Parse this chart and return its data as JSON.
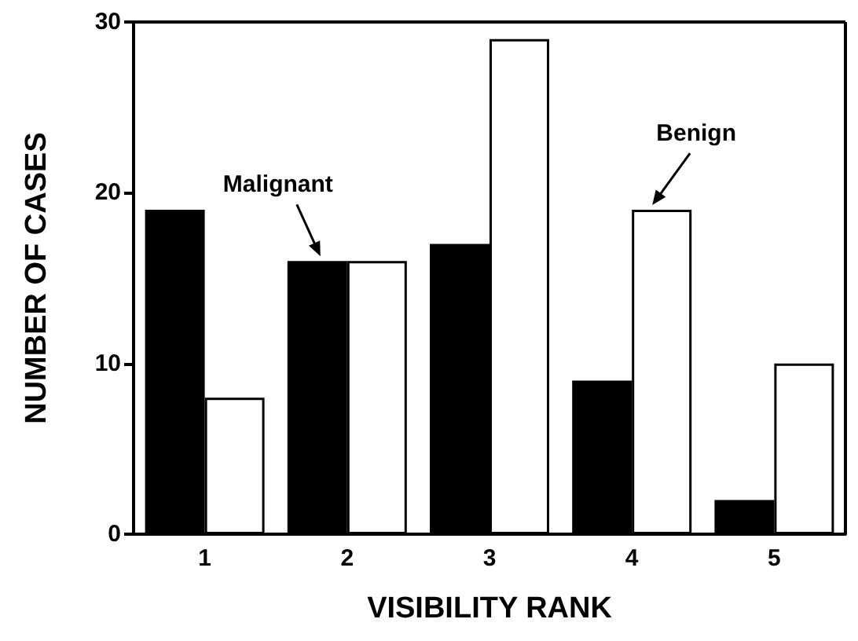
{
  "chart_data": {
    "type": "bar",
    "xlabel": "VISIBILITY RANK",
    "ylabel": "NUMBER OF CASES",
    "categories": [
      "1",
      "2",
      "3",
      "4",
      "5"
    ],
    "series": [
      {
        "name": "Malignant",
        "color": "#000000",
        "values": [
          19,
          16,
          17,
          9,
          2
        ]
      },
      {
        "name": "Benign",
        "color": "#ffffff",
        "values": [
          8,
          16,
          29,
          19,
          10
        ]
      }
    ],
    "ylim": [
      0,
      30
    ],
    "yticks": [
      0,
      10,
      20,
      30
    ],
    "grid": false,
    "legend": false
  }
}
